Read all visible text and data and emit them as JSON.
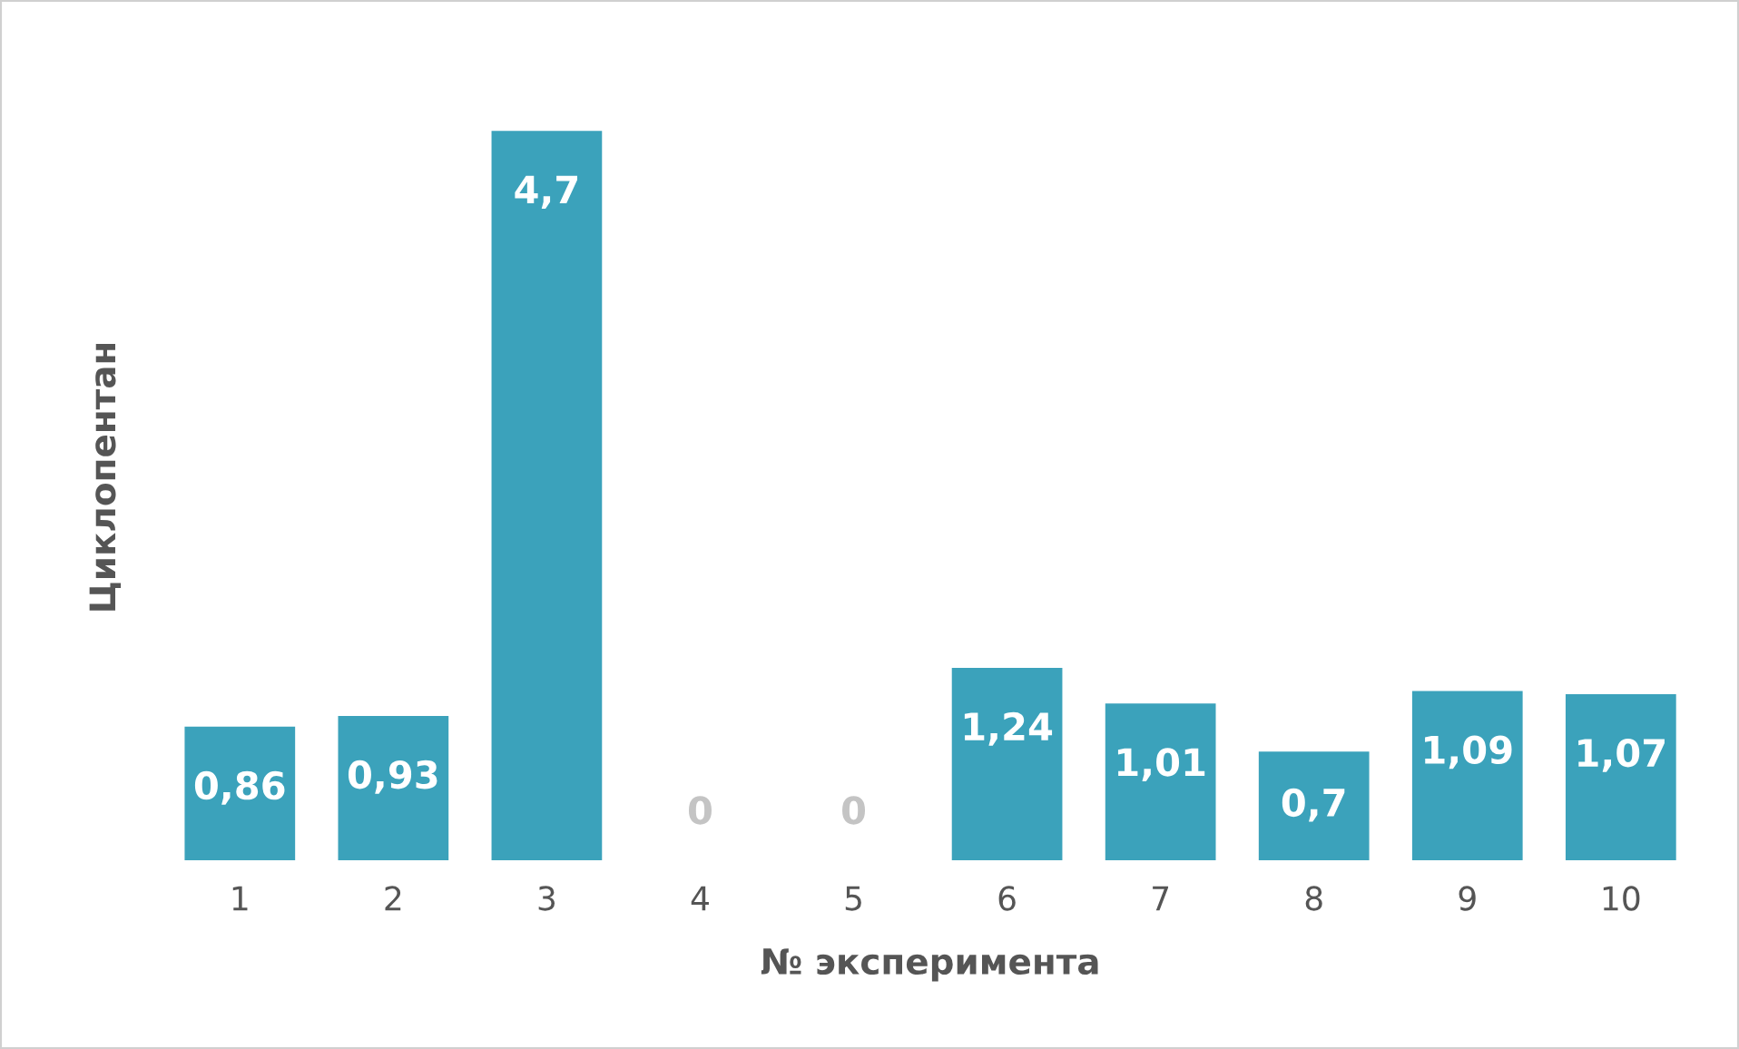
{
  "chart_data": {
    "type": "bar",
    "xlabel": "№ эксперимента",
    "ylabel": "Циклопентан",
    "categories": [
      "1",
      "2",
      "3",
      "4",
      "5",
      "6",
      "7",
      "8",
      "9",
      "10"
    ],
    "values": [
      0.86,
      0.93,
      4.7,
      0,
      0,
      1.24,
      1.01,
      0.7,
      1.09,
      1.07
    ],
    "value_labels": [
      "0,86",
      "0,93",
      "4,7",
      "0",
      "0",
      "1,24",
      "1,01",
      "0,7",
      "1,09",
      "1,07"
    ],
    "color": "#3ba2bb",
    "grid": false,
    "legend": false,
    "tick_labels": "x"
  }
}
